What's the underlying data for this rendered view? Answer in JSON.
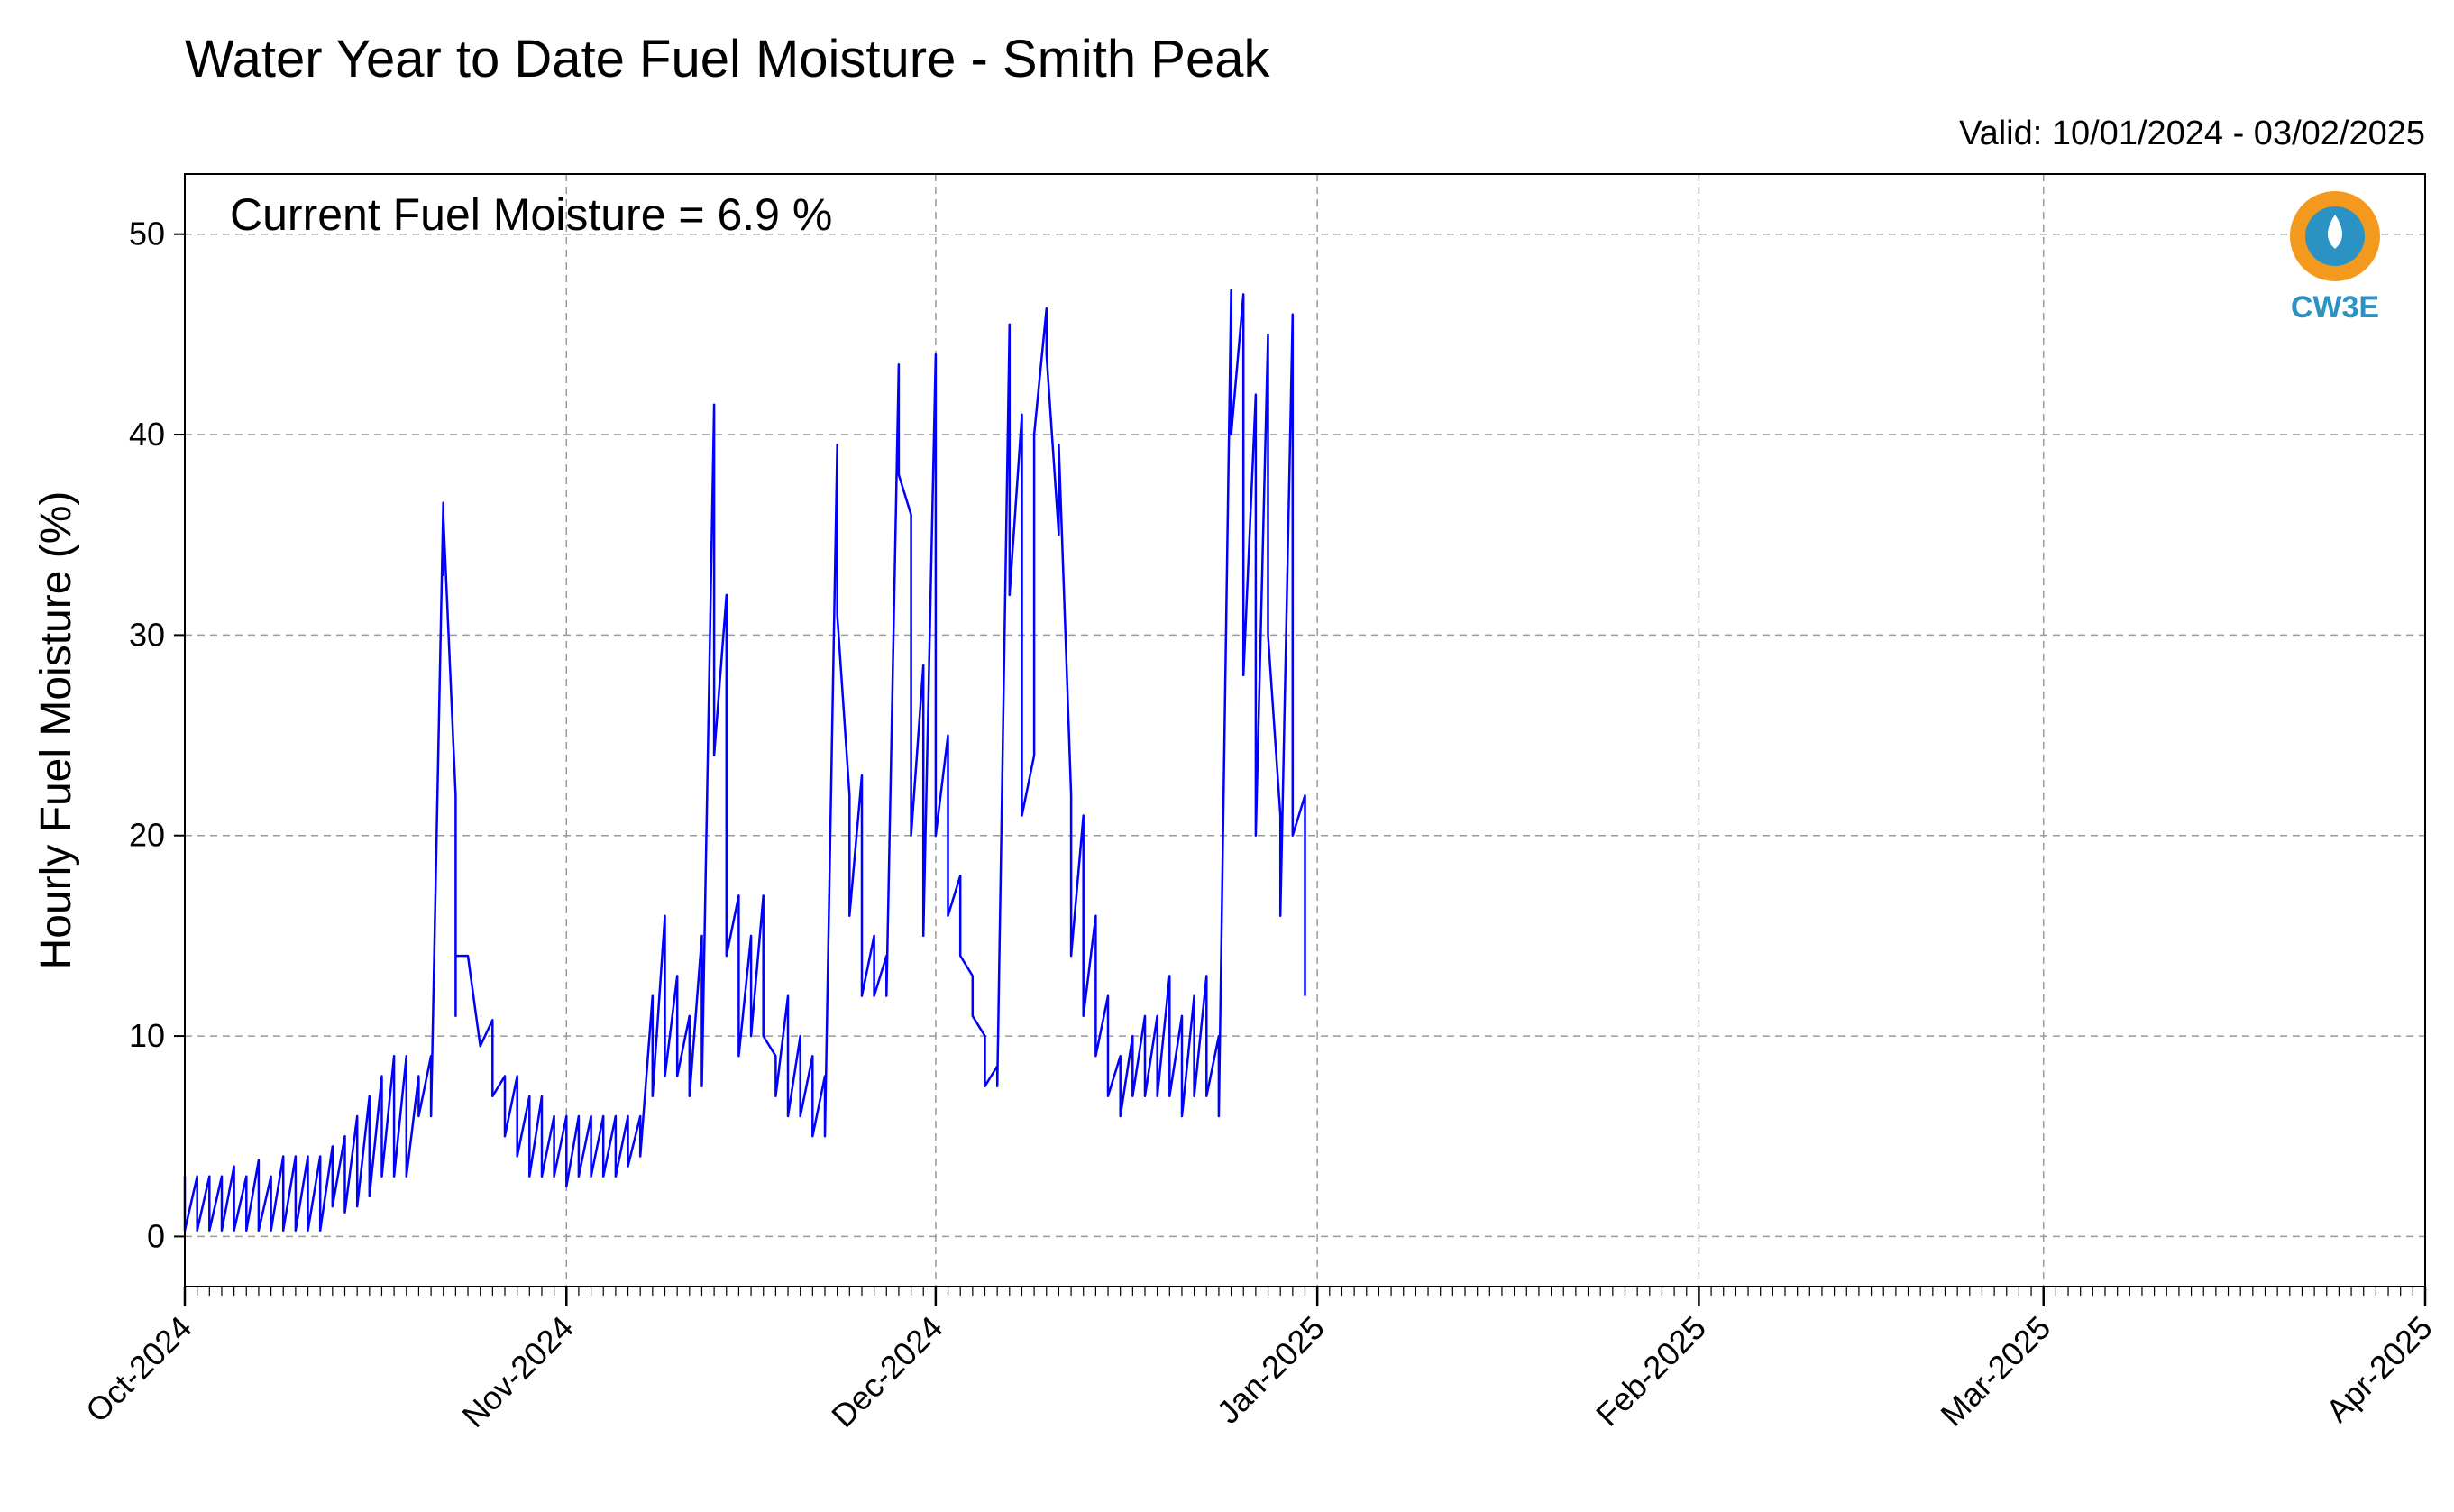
{
  "chart_data": {
    "type": "line",
    "title": "Water Year to Date Fuel Moisture - Smith Peak",
    "subtitle": "Valid: 10/01/2024 - 03/02/2025",
    "annotation": "Current Fuel Moisture = 6.9 %",
    "ylabel": "Hourly Fuel Moisture (%)",
    "xlabel": "",
    "x_range": [
      "2024-10-01",
      "2025-04-01"
    ],
    "ylim": [
      -2.5,
      53
    ],
    "yticks": [
      0,
      10,
      20,
      30,
      40,
      50
    ],
    "x_ticks": [
      {
        "date": "2024-10-01",
        "label": "Oct-2024"
      },
      {
        "date": "2024-11-01",
        "label": "Nov-2024"
      },
      {
        "date": "2024-12-01",
        "label": "Dec-2024"
      },
      {
        "date": "2025-01-01",
        "label": "Jan-2025"
      },
      {
        "date": "2025-02-01",
        "label": "Feb-2025"
      },
      {
        "date": "2025-03-01",
        "label": "Mar-2025"
      },
      {
        "date": "2025-04-01",
        "label": "Apr-2025"
      }
    ],
    "grid": true,
    "line_color": "#0000ff",
    "series": [
      {
        "points": [
          [
            "2024-10-01",
            3
          ],
          [
            "2024-10-01",
            0.3
          ],
          [
            "2024-10-02",
            3
          ],
          [
            "2024-10-02",
            0.3
          ],
          [
            "2024-10-03",
            3
          ],
          [
            "2024-10-03",
            0.3
          ],
          [
            "2024-10-04",
            3
          ],
          [
            "2024-10-04",
            0.3
          ],
          [
            "2024-10-05",
            3.5
          ],
          [
            "2024-10-05",
            0.3
          ],
          [
            "2024-10-06",
            3
          ],
          [
            "2024-10-06",
            0.3
          ],
          [
            "2024-10-07",
            3.8
          ],
          [
            "2024-10-07",
            0.3
          ],
          [
            "2024-10-08",
            3
          ],
          [
            "2024-10-08",
            0.3
          ],
          [
            "2024-10-09",
            4
          ],
          [
            "2024-10-09",
            0.3
          ],
          [
            "2024-10-10",
            4
          ],
          [
            "2024-10-10",
            0.3
          ],
          [
            "2024-10-11",
            4
          ],
          [
            "2024-10-11",
            0.3
          ],
          [
            "2024-10-12",
            4
          ],
          [
            "2024-10-12",
            0.3
          ],
          [
            "2024-10-13",
            4.5
          ],
          [
            "2024-10-13",
            1.5
          ],
          [
            "2024-10-14",
            5
          ],
          [
            "2024-10-14",
            1.2
          ],
          [
            "2024-10-15",
            6
          ],
          [
            "2024-10-15",
            1.5
          ],
          [
            "2024-10-16",
            7
          ],
          [
            "2024-10-16",
            2
          ],
          [
            "2024-10-17",
            8
          ],
          [
            "2024-10-17",
            3
          ],
          [
            "2024-10-18",
            9
          ],
          [
            "2024-10-18",
            3
          ],
          [
            "2024-10-19",
            9
          ],
          [
            "2024-10-19",
            3
          ],
          [
            "2024-10-20",
            8
          ],
          [
            "2024-10-20",
            6
          ],
          [
            "2024-10-21",
            9
          ],
          [
            "2024-10-21",
            6
          ],
          [
            "2024-10-22",
            36.6
          ],
          [
            "2024-10-22",
            33
          ],
          [
            "2024-10-22",
            36
          ],
          [
            "2024-10-23",
            22
          ],
          [
            "2024-10-23",
            11
          ],
          [
            "2024-10-23",
            14
          ],
          [
            "2024-10-24",
            14
          ],
          [
            "2024-10-25",
            9.5
          ],
          [
            "2024-10-26",
            10.8
          ],
          [
            "2024-10-26",
            7
          ],
          [
            "2024-10-27",
            8
          ],
          [
            "2024-10-27",
            5
          ],
          [
            "2024-10-28",
            8
          ],
          [
            "2024-10-28",
            4
          ],
          [
            "2024-10-29",
            7
          ],
          [
            "2024-10-29",
            3
          ],
          [
            "2024-10-30",
            7
          ],
          [
            "2024-10-30",
            3
          ],
          [
            "2024-10-31",
            6
          ],
          [
            "2024-10-31",
            3
          ],
          [
            "2024-11-01",
            6
          ],
          [
            "2024-11-01",
            2.5
          ],
          [
            "2024-11-02",
            6
          ],
          [
            "2024-11-02",
            3
          ],
          [
            "2024-11-03",
            6
          ],
          [
            "2024-11-03",
            3
          ],
          [
            "2024-11-04",
            6
          ],
          [
            "2024-11-04",
            3
          ],
          [
            "2024-11-05",
            6
          ],
          [
            "2024-11-05",
            3
          ],
          [
            "2024-11-06",
            6
          ],
          [
            "2024-11-06",
            3.5
          ],
          [
            "2024-11-07",
            6
          ],
          [
            "2024-11-07",
            4
          ],
          [
            "2024-11-08",
            12
          ],
          [
            "2024-11-08",
            7
          ],
          [
            "2024-11-09",
            16
          ],
          [
            "2024-11-09",
            8
          ],
          [
            "2024-11-10",
            13
          ],
          [
            "2024-11-10",
            8
          ],
          [
            "2024-11-11",
            11
          ],
          [
            "2024-11-11",
            7
          ],
          [
            "2024-11-12",
            15
          ],
          [
            "2024-11-12",
            7.5
          ],
          [
            "2024-11-13",
            41.5
          ],
          [
            "2024-11-13",
            24
          ],
          [
            "2024-11-14",
            32
          ],
          [
            "2024-11-14",
            14
          ],
          [
            "2024-11-15",
            17
          ],
          [
            "2024-11-15",
            9
          ],
          [
            "2024-11-16",
            15
          ],
          [
            "2024-11-16",
            10
          ],
          [
            "2024-11-17",
            17
          ],
          [
            "2024-11-17",
            10
          ],
          [
            "2024-11-18",
            9
          ],
          [
            "2024-11-18",
            7
          ],
          [
            "2024-11-19",
            12
          ],
          [
            "2024-11-19",
            6
          ],
          [
            "2024-11-20",
            10
          ],
          [
            "2024-11-20",
            6
          ],
          [
            "2024-11-21",
            9
          ],
          [
            "2024-11-21",
            5
          ],
          [
            "2024-11-22",
            8
          ],
          [
            "2024-11-22",
            5
          ],
          [
            "2024-11-23",
            39.5
          ],
          [
            "2024-11-23",
            31
          ],
          [
            "2024-11-24",
            22
          ],
          [
            "2024-11-24",
            16
          ],
          [
            "2024-11-25",
            23
          ],
          [
            "2024-11-25",
            12
          ],
          [
            "2024-11-26",
            15
          ],
          [
            "2024-11-26",
            12
          ],
          [
            "2024-11-27",
            14
          ],
          [
            "2024-11-27",
            12
          ],
          [
            "2024-11-28",
            43.5
          ],
          [
            "2024-11-28",
            38
          ],
          [
            "2024-11-29",
            36
          ],
          [
            "2024-11-29",
            20
          ],
          [
            "2024-11-30",
            28.5
          ],
          [
            "2024-11-30",
            15
          ],
          [
            "2024-12-01",
            44
          ],
          [
            "2024-12-01",
            20
          ],
          [
            "2024-12-02",
            25
          ],
          [
            "2024-12-02",
            16
          ],
          [
            "2024-12-03",
            18
          ],
          [
            "2024-12-03",
            14
          ],
          [
            "2024-12-04",
            13
          ],
          [
            "2024-12-04",
            11
          ],
          [
            "2024-12-05",
            10
          ],
          [
            "2024-12-05",
            7.5
          ],
          [
            "2024-12-06",
            8.5
          ],
          [
            "2024-12-06",
            7.5
          ],
          [
            "2024-12-07",
            45.5
          ],
          [
            "2024-12-07",
            32
          ],
          [
            "2024-12-08",
            41
          ],
          [
            "2024-12-08",
            21
          ],
          [
            "2024-12-09",
            24
          ],
          [
            "2024-12-09",
            40
          ],
          [
            "2024-12-10",
            46.3
          ],
          [
            "2024-12-10",
            44
          ],
          [
            "2024-12-11",
            35
          ],
          [
            "2024-12-11",
            39.5
          ],
          [
            "2024-12-12",
            22
          ],
          [
            "2024-12-12",
            14
          ],
          [
            "2024-12-13",
            21
          ],
          [
            "2024-12-13",
            11
          ],
          [
            "2024-12-14",
            16
          ],
          [
            "2024-12-14",
            9
          ],
          [
            "2024-12-15",
            12
          ],
          [
            "2024-12-15",
            7
          ],
          [
            "2024-12-16",
            9
          ],
          [
            "2024-12-16",
            6
          ],
          [
            "2024-12-17",
            10
          ],
          [
            "2024-12-17",
            7
          ],
          [
            "2024-12-18",
            11
          ],
          [
            "2024-12-18",
            7
          ],
          [
            "2024-12-19",
            11
          ],
          [
            "2024-12-19",
            7
          ],
          [
            "2024-12-20",
            13
          ],
          [
            "2024-12-20",
            7
          ],
          [
            "2024-12-21",
            11
          ],
          [
            "2024-12-21",
            6
          ],
          [
            "2024-12-22",
            12
          ],
          [
            "2024-12-22",
            7
          ],
          [
            "2024-12-23",
            13
          ],
          [
            "2024-12-23",
            7
          ],
          [
            "2024-12-24",
            10
          ],
          [
            "2024-12-24",
            6
          ],
          [
            "2024-12-25",
            47.2
          ],
          [
            "2024-12-25",
            40
          ],
          [
            "2024-12-26",
            47
          ],
          [
            "2024-12-26",
            28
          ],
          [
            "2024-12-27",
            42
          ],
          [
            "2024-12-27",
            20
          ],
          [
            "2024-12-28",
            45
          ],
          [
            "2024-12-28",
            30
          ],
          [
            "2024-12-29",
            21
          ],
          [
            "2024-12-29",
            16
          ],
          [
            "2024-12-30",
            46
          ],
          [
            "2024-12-30",
            20
          ],
          [
            "2024-12-31",
            22
          ],
          [
            "2024-12-31",
            12
          ]
        ]
      }
    ]
  }
}
